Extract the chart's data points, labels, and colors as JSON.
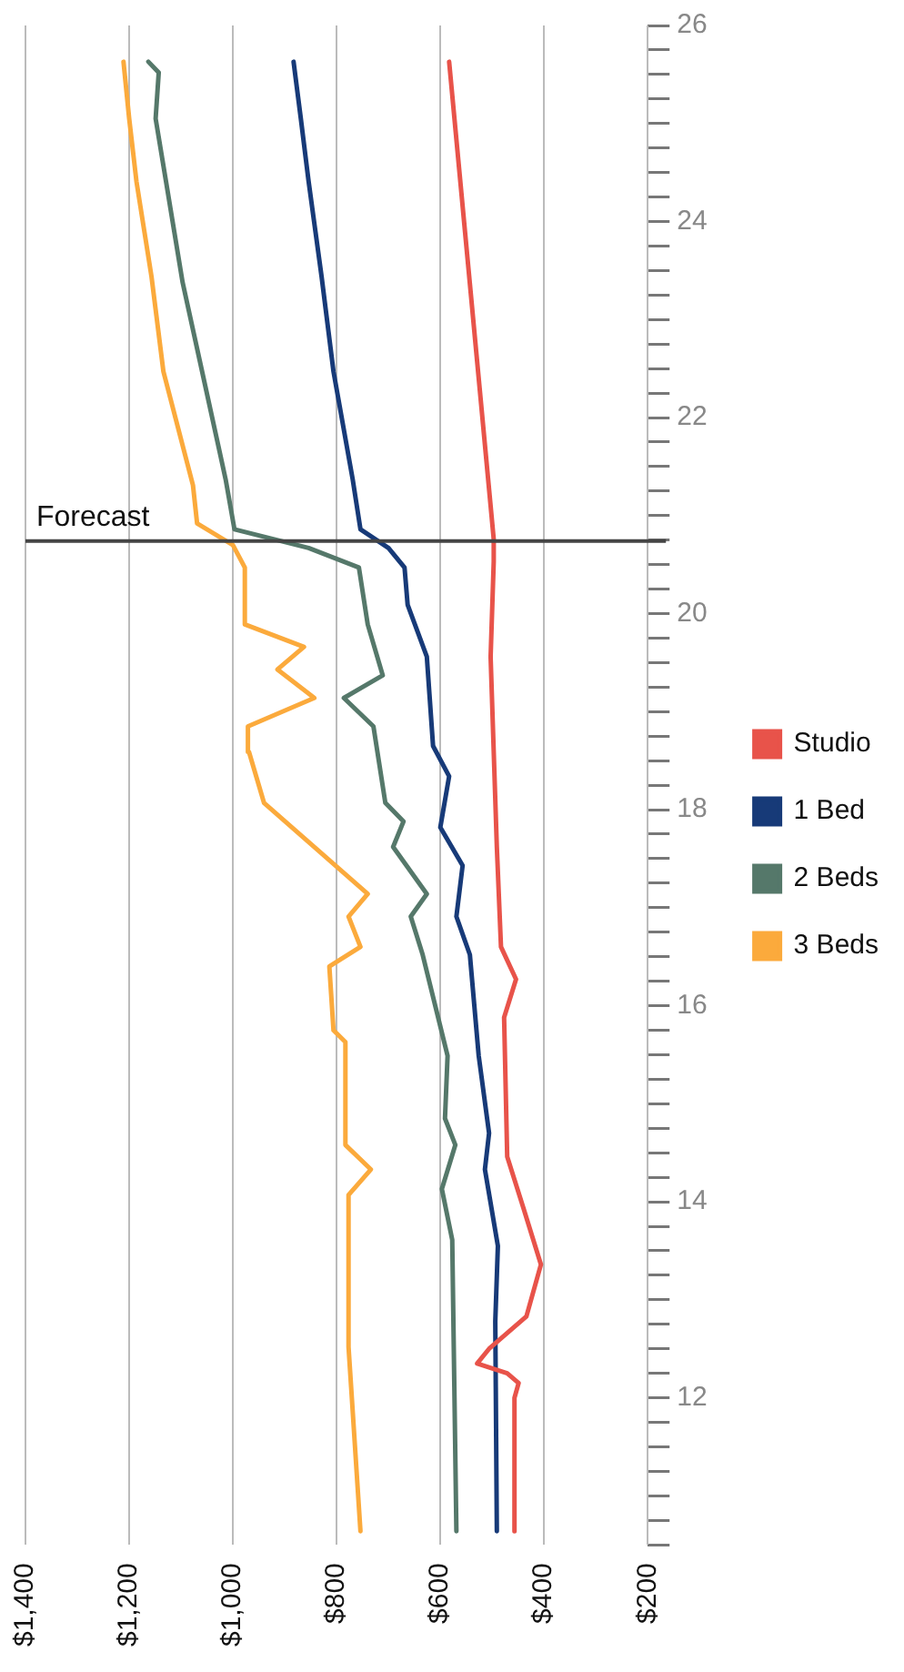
{
  "chart_data": {
    "type": "line",
    "legend": "right",
    "grid": "x",
    "marker": "none",
    "line_style": "solid",
    "xlim": [
      1400,
      200
    ],
    "xticks": [
      {
        "value": 200,
        "label": "$200"
      },
      {
        "value": 400,
        "label": "$400"
      },
      {
        "value": 600,
        "label": "$600"
      },
      {
        "value": 800,
        "label": "$800"
      },
      {
        "value": 1000,
        "label": "$1,000"
      },
      {
        "value": 1200,
        "label": "$1,200"
      },
      {
        "value": 1400,
        "label": "$1,400"
      }
    ],
    "ylim": [
      10.5,
      26
    ],
    "yticks": [
      {
        "value": 10.5,
        "label": null
      },
      {
        "value": 10.75,
        "label": null
      },
      {
        "value": 11,
        "label": null
      },
      {
        "value": 11.25,
        "label": null
      },
      {
        "value": 11.5,
        "label": null
      },
      {
        "value": 11.75,
        "label": null
      },
      12,
      {
        "value": 12.25,
        "label": null
      },
      {
        "value": 12.5,
        "label": null
      },
      {
        "value": 12.75,
        "label": null
      },
      {
        "value": 13,
        "label": null
      },
      {
        "value": 13.25,
        "label": null
      },
      {
        "value": 13.5,
        "label": null
      },
      {
        "value": 13.75,
        "label": null
      },
      14,
      {
        "value": 14.25,
        "label": null
      },
      {
        "value": 14.5,
        "label": null
      },
      {
        "value": 14.75,
        "label": null
      },
      {
        "value": 15,
        "label": null
      },
      {
        "value": 15.25,
        "label": null
      },
      {
        "value": 15.5,
        "label": null
      },
      {
        "value": 15.75,
        "label": null
      },
      16,
      {
        "value": 16.25,
        "label": null
      },
      {
        "value": 16.5,
        "label": null
      },
      {
        "value": 16.75,
        "label": null
      },
      {
        "value": 17,
        "label": null
      },
      {
        "value": 17.25,
        "label": null
      },
      {
        "value": 17.5,
        "label": null
      },
      {
        "value": 17.75,
        "label": null
      },
      18,
      {
        "value": 18.25,
        "label": null
      },
      {
        "value": 18.5,
        "label": null
      },
      {
        "value": 18.75,
        "label": null
      },
      {
        "value": 19,
        "label": null
      },
      {
        "value": 19.25,
        "label": null
      },
      {
        "value": 19.5,
        "label": null
      },
      {
        "value": 19.75,
        "label": null
      },
      20,
      {
        "value": 20.25,
        "label": null
      },
      {
        "value": 20.5,
        "label": null
      },
      {
        "value": 20.75,
        "label": null
      },
      {
        "value": 21,
        "label": null
      },
      {
        "value": 21.25,
        "label": null
      },
      {
        "value": 21.5,
        "label": null
      },
      {
        "value": 21.75,
        "label": null
      },
      22,
      {
        "value": 22.25,
        "label": null
      },
      {
        "value": 22.5,
        "label": null
      },
      {
        "value": 22.75,
        "label": null
      },
      {
        "value": 23,
        "label": null
      },
      {
        "value": 23.25,
        "label": null
      },
      {
        "value": 23.5,
        "label": null
      },
      {
        "value": 23.75,
        "label": null
      },
      24,
      {
        "value": 24.25,
        "label": null
      },
      {
        "value": 24.5,
        "label": null
      },
      {
        "value": 24.75,
        "label": null
      },
      {
        "value": 25,
        "label": null
      },
      {
        "value": 25.25,
        "label": null
      },
      {
        "value": 25.5,
        "label": null
      },
      {
        "value": 25.75,
        "label": null
      },
      26
    ],
    "ref_lines": [
      {
        "axis": "y",
        "value": 20.74,
        "label": "Forecast",
        "color": "#444444"
      }
    ],
    "series": [
      {
        "name": "Studio",
        "color": "#e8534a",
        "values": [
          10.64,
          12.0,
          12.15,
          12.25,
          12.35,
          12.5,
          12.83,
          13.36,
          13.94,
          14.46,
          15.88,
          16.27,
          16.6,
          17.62,
          19.56,
          20.53,
          20.76,
          25.63
        ],
        "x": [
          457,
          457,
          449,
          471,
          529,
          506,
          434,
          406,
          440,
          471,
          477,
          454,
          483,
          491,
          503,
          497,
          497,
          583
        ]
      },
      {
        "name": "1 Bed",
        "color": "#173a78",
        "values": [
          10.64,
          12.78,
          13.55,
          14.33,
          14.7,
          15.49,
          16.52,
          16.91,
          17.43,
          17.82,
          18.34,
          18.65,
          19.56,
          20.09,
          20.47,
          20.67,
          20.86,
          21.37,
          22.47,
          23.44,
          24.41,
          25.05,
          25.63
        ],
        "x": [
          491,
          494,
          489,
          514,
          506,
          526,
          543,
          569,
          557,
          600,
          583,
          614,
          626,
          663,
          669,
          700,
          754,
          769,
          806,
          829,
          854,
          869,
          883
        ]
      },
      {
        "name": "2 Beds",
        "color": "#55786a",
        "values": [
          10.64,
          13.61,
          14.13,
          14.58,
          14.85,
          15.49,
          16.52,
          16.91,
          17.14,
          17.62,
          17.88,
          18.07,
          18.85,
          19.14,
          19.37,
          19.89,
          20.47,
          20.67,
          20.86,
          21.37,
          22.34,
          23.38,
          24.41,
          25.05,
          25.52,
          25.63
        ],
        "x": [
          569,
          577,
          597,
          571,
          591,
          586,
          634,
          657,
          626,
          691,
          671,
          706,
          729,
          786,
          711,
          740,
          757,
          854,
          997,
          1014,
          1054,
          1097,
          1129,
          1149,
          1143,
          1163
        ]
      },
      {
        "name": "3 Beds",
        "color": "#fbaa3c",
        "values": [
          10.64,
          12.52,
          14.07,
          14.33,
          14.58,
          15.63,
          15.75,
          16.4,
          16.6,
          16.91,
          17.14,
          18.07,
          18.59,
          18.85,
          19.14,
          19.43,
          19.66,
          19.89,
          20.47,
          20.7,
          20.92,
          21.31,
          22.47,
          23.44,
          24.41,
          25.05,
          25.63
        ],
        "x": [
          754,
          777,
          777,
          734,
          783,
          783,
          806,
          814,
          754,
          777,
          740,
          940,
          969,
          971,
          843,
          914,
          863,
          977,
          977,
          1000,
          1069,
          1077,
          1134,
          1157,
          1186,
          1200,
          1211
        ]
      }
    ]
  }
}
